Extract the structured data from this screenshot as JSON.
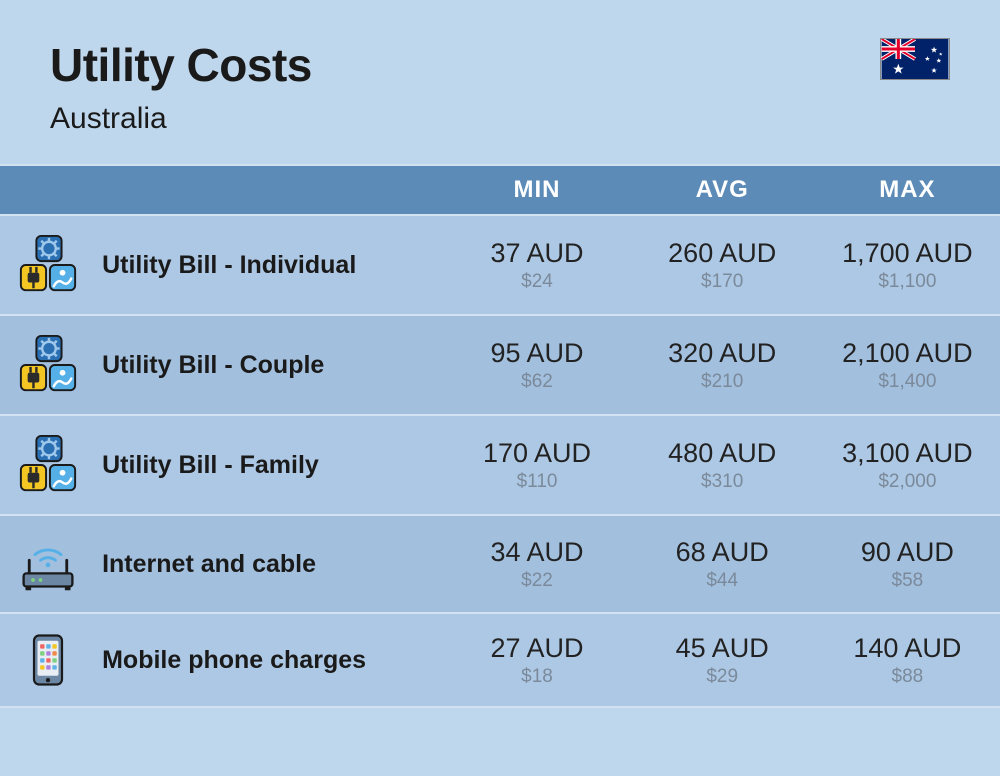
{
  "header": {
    "title": "Utility Costs",
    "subtitle": "Australia"
  },
  "columns": {
    "min": "MIN",
    "avg": "AVG",
    "max": "MAX"
  },
  "layout": {
    "icon_col_width": 96,
    "label_col_width": 348,
    "val_col_width": 185,
    "header_bg": "#5c8bb8",
    "header_text": "#ffffff",
    "row_light_bg": "#adc8e4",
    "row_dark_bg": "#a2bfde",
    "page_bg": "#bfd7ed",
    "divider": "#d2e2f0",
    "aud_color": "#222222",
    "usd_color": "#7b8a9a",
    "title_fontsize": 46,
    "subtitle_fontsize": 30,
    "colhead_fontsize": 24,
    "label_fontsize": 25,
    "aud_fontsize": 27,
    "usd_fontsize": 19
  },
  "rows": [
    {
      "icon": "utility",
      "label": "Utility Bill - Individual",
      "shade": "l",
      "min": {
        "aud": "37 AUD",
        "usd": "$24"
      },
      "avg": {
        "aud": "260 AUD",
        "usd": "$170"
      },
      "max": {
        "aud": "1,700 AUD",
        "usd": "$1,100"
      }
    },
    {
      "icon": "utility",
      "label": "Utility Bill - Couple",
      "shade": "d",
      "min": {
        "aud": "95 AUD",
        "usd": "$62"
      },
      "avg": {
        "aud": "320 AUD",
        "usd": "$210"
      },
      "max": {
        "aud": "2,100 AUD",
        "usd": "$1,400"
      }
    },
    {
      "icon": "utility",
      "label": "Utility Bill - Family",
      "shade": "l",
      "min": {
        "aud": "170 AUD",
        "usd": "$110"
      },
      "avg": {
        "aud": "480 AUD",
        "usd": "$310"
      },
      "max": {
        "aud": "3,100 AUD",
        "usd": "$2,000"
      }
    },
    {
      "icon": "router",
      "label": "Internet and cable",
      "shade": "d",
      "min": {
        "aud": "34 AUD",
        "usd": "$22"
      },
      "avg": {
        "aud": "68 AUD",
        "usd": "$44"
      },
      "max": {
        "aud": "90 AUD",
        "usd": "$58"
      }
    },
    {
      "icon": "phone",
      "label": "Mobile phone charges",
      "shade": "l",
      "min": {
        "aud": "27 AUD",
        "usd": "$18"
      },
      "avg": {
        "aud": "45 AUD",
        "usd": "$29"
      },
      "max": {
        "aud": "140 AUD",
        "usd": "$88"
      }
    }
  ],
  "icons": {
    "utility": {
      "colors": {
        "gear_bg": "#2b6fb3",
        "gear_fg": "#9fc8ea",
        "plug_bg": "#f3c623",
        "plug_fg": "#2b2b2b",
        "water_bg": "#55b0e8",
        "water_fg": "#ffffff",
        "stroke": "#1a1a1a"
      }
    },
    "router": {
      "colors": {
        "body": "#6b87a4",
        "line": "#1a1a1a",
        "wave": "#55b0e8",
        "light": "#7fd17f"
      }
    },
    "phone": {
      "colors": {
        "body": "#6b87a4",
        "screen": "#e8eef4",
        "stroke": "#1a1a1a",
        "apps": [
          "#f06464",
          "#5fb3e6",
          "#f3c623",
          "#7fd17f",
          "#b07fe0",
          "#f08a4a"
        ]
      }
    }
  },
  "flag": {
    "bg": "#012169",
    "red": "#E4002B",
    "white": "#FFFFFF"
  }
}
